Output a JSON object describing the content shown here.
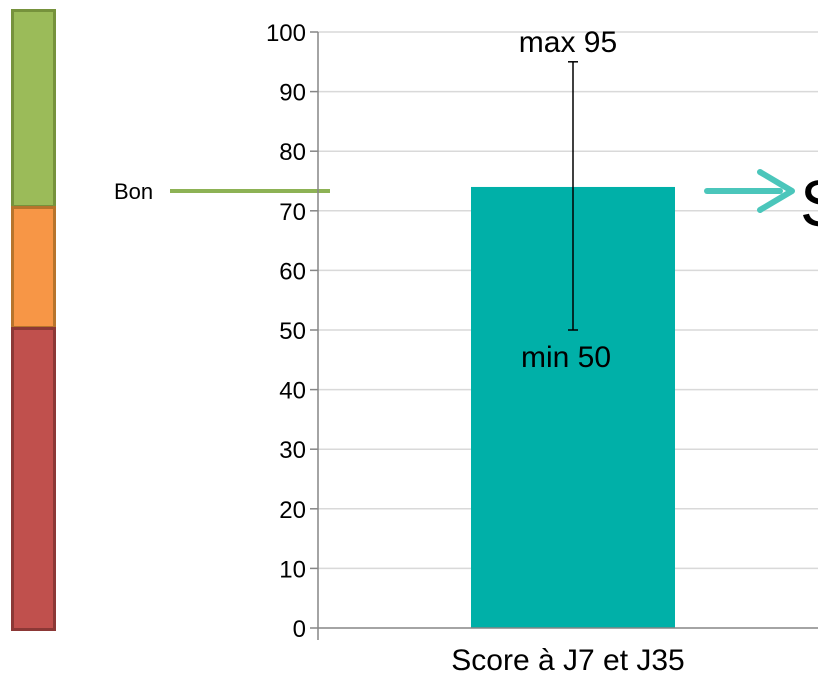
{
  "chart_data": {
    "type": "bar",
    "categories": [
      "Score à J7 et J35"
    ],
    "values": [
      74
    ],
    "error_bar": {
      "min": 50,
      "max": 95
    },
    "annotations": {
      "max_label": "max 95",
      "min_label": "min 50",
      "cut_text": "S"
    },
    "ylim": [
      0,
      100
    ],
    "yticks": [
      0,
      10,
      20,
      30,
      40,
      50,
      60,
      70,
      80,
      90,
      100
    ],
    "grid": true,
    "title": "",
    "xlabel": "",
    "ylabel": "",
    "bar_color": "#00b0a8",
    "reference_line": {
      "label": "Bon",
      "value": 73,
      "color": "#8db255"
    }
  },
  "scale_bar": {
    "segments": [
      {
        "name": "good",
        "color": "#9bbb59"
      },
      {
        "name": "medium",
        "color": "#f79646"
      },
      {
        "name": "bad",
        "color": "#c0504d"
      }
    ]
  },
  "colors": {
    "arrow": "#4bc6bb",
    "grid": "#d9d9d9",
    "axis": "#868686"
  }
}
